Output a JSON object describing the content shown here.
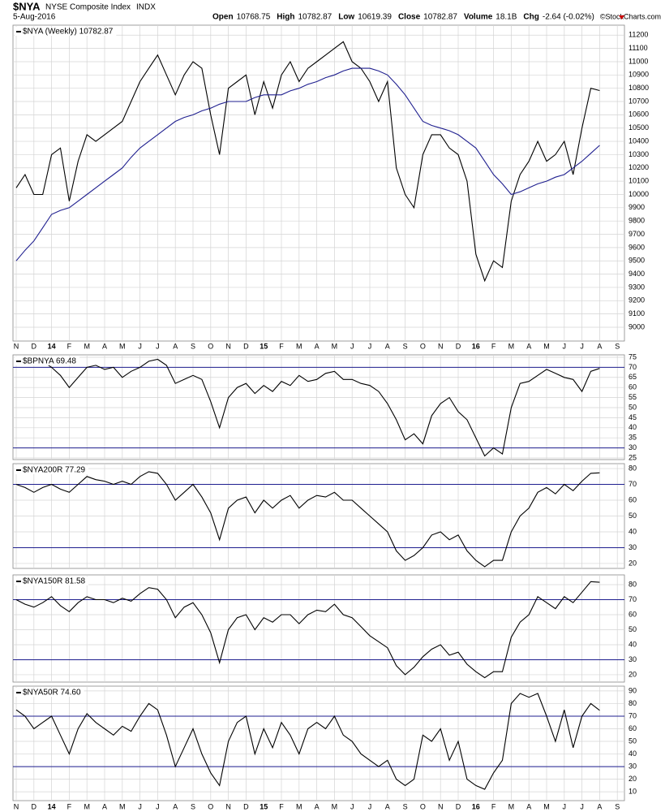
{
  "header": {
    "symbol": "$NYA",
    "name": "NYSE Composite Index",
    "exchange": "INDX",
    "date": "5-Aug-2016",
    "credit": "©StockCharts.com",
    "fields": [
      {
        "label": "Open",
        "value": 10768.75
      },
      {
        "label": "High",
        "value": 10782.87
      },
      {
        "label": "Low",
        "value": 10619.39
      },
      {
        "label": "Close",
        "value": 10782.87
      },
      {
        "label": "Volume",
        "value": "18.1B"
      },
      {
        "label": "Chg",
        "value": "-2.64 (-0.02%)"
      }
    ]
  },
  "chart_data": [
    {
      "type": "line",
      "title": "$NYA (Weekly) 10782.87",
      "grid": true,
      "categories": [
        "N",
        null,
        "D",
        null,
        "14",
        null,
        "F",
        null,
        "M",
        null,
        "A",
        null,
        "M",
        null,
        "J",
        null,
        "J",
        null,
        "A",
        null,
        "S",
        null,
        "O",
        null,
        "N",
        null,
        "D",
        null,
        "15",
        null,
        "F",
        null,
        "M",
        null,
        "A",
        null,
        "M",
        null,
        "J",
        null,
        "J",
        null,
        "A",
        null,
        "S",
        null,
        "O",
        null,
        "N",
        null,
        "D",
        null,
        "16",
        null,
        "F",
        null,
        "M",
        null,
        "A",
        null,
        "M",
        null,
        "J",
        null,
        "J",
        null,
        "A",
        null,
        "S",
        null
      ],
      "series": [
        {
          "color": "#000000",
          "values": [
            10050,
            10150,
            10000,
            10000,
            10300,
            10350,
            9950,
            10250,
            10450,
            10400,
            10450,
            10500,
            10550,
            10700,
            10850,
            10950,
            11050,
            10900,
            10750,
            10900,
            11000,
            10950,
            10600,
            10300,
            10800,
            10850,
            10900,
            10600,
            10850,
            10650,
            10900,
            11000,
            10850,
            10950,
            11000,
            11050,
            11100,
            11150,
            11000,
            10950,
            10850,
            10700,
            10850,
            10200,
            10000,
            9900,
            10300,
            10450,
            10450,
            10350,
            10300,
            10100,
            9550,
            9350,
            9500,
            9450,
            9950,
            10150,
            10250,
            10400,
            10250,
            10300,
            10400,
            10150,
            10500,
            10800,
            10782.87,
            null,
            null,
            null
          ]
        },
        {
          "color": "#1f1f8f",
          "values": [
            9500,
            9580,
            9650,
            9750,
            9850,
            9880,
            9900,
            9950,
            10000,
            10050,
            10100,
            10150,
            10200,
            10280,
            10350,
            10400,
            10450,
            10500,
            10550,
            10580,
            10600,
            10630,
            10650,
            10680,
            10700,
            10700,
            10700,
            10730,
            10750,
            10750,
            10750,
            10780,
            10800,
            10830,
            10850,
            10880,
            10900,
            10930,
            10950,
            10950,
            10950,
            10930,
            10900,
            10830,
            10750,
            10650,
            10550,
            10520,
            10500,
            10480,
            10450,
            10400,
            10350,
            10250,
            10150,
            10080,
            10000,
            10020,
            10050,
            10080,
            10100,
            10130,
            10150,
            10200,
            10250,
            10310,
            10370,
            null,
            null,
            null
          ]
        }
      ],
      "ylim": [
        8896,
        11275
      ],
      "yticks": [
        9000,
        9100,
        9200,
        9300,
        9400,
        9500,
        9600,
        9700,
        9800,
        9900,
        10000,
        10100,
        10200,
        10300,
        10400,
        10500,
        10600,
        10700,
        10800,
        10900,
        11000,
        11100,
        11200
      ]
    },
    {
      "type": "line",
      "title": "$BPNYA 69.48",
      "grid": true,
      "hlines": [
        70,
        30
      ],
      "hline_color": "#1f1f8f",
      "series": [
        {
          "color": "#000000",
          "values": [
            null,
            null,
            null,
            73,
            70,
            66,
            60,
            65,
            70,
            71,
            69,
            70,
            65,
            68,
            70,
            73,
            74,
            71,
            62,
            64,
            66,
            64,
            53,
            40,
            55,
            60,
            62,
            57,
            61,
            58,
            63,
            61,
            66,
            63,
            64,
            67,
            68,
            64,
            64,
            62,
            61,
            58,
            52,
            44,
            34,
            37,
            32,
            46,
            52,
            55,
            48,
            44,
            35,
            26,
            30,
            27,
            50,
            62,
            63,
            66,
            69,
            67,
            65,
            64,
            58,
            68,
            69.48,
            null,
            null,
            null
          ]
        }
      ],
      "ylim": [
        24.2,
        76.2
      ],
      "yticks": [
        25,
        30,
        35,
        40,
        45,
        50,
        55,
        60,
        65,
        70,
        75
      ]
    },
    {
      "type": "line",
      "title": "$NYA200R 77.29",
      "grid": true,
      "hlines": [
        70,
        30
      ],
      "hline_color": "#1f1f8f",
      "series": [
        {
          "color": "#000000",
          "values": [
            70,
            68,
            65,
            68,
            70,
            67,
            65,
            70,
            75,
            73,
            72,
            70,
            72,
            70,
            75,
            78,
            77,
            70,
            60,
            65,
            70,
            62,
            52,
            35,
            55,
            60,
            62,
            52,
            60,
            55,
            60,
            63,
            55,
            60,
            63,
            62,
            65,
            60,
            60,
            55,
            50,
            45,
            40,
            28,
            22,
            25,
            30,
            38,
            40,
            35,
            38,
            28,
            22,
            18,
            22,
            22,
            40,
            50,
            55,
            65,
            68,
            64,
            70,
            66,
            72,
            77,
            77.29,
            null,
            null,
            null
          ]
        }
      ],
      "ylim": [
        16.9,
        83.1
      ],
      "yticks": [
        20,
        30,
        40,
        50,
        60,
        70,
        80
      ]
    },
    {
      "type": "line",
      "title": "$NYA150R 81.58",
      "grid": true,
      "hlines": [
        70,
        30
      ],
      "hline_color": "#1f1f8f",
      "series": [
        {
          "color": "#000000",
          "values": [
            70,
            67,
            65,
            68,
            72,
            66,
            62,
            68,
            72,
            70,
            70,
            68,
            71,
            69,
            74,
            78,
            77,
            70,
            58,
            65,
            68,
            60,
            48,
            28,
            50,
            58,
            60,
            50,
            58,
            55,
            60,
            60,
            54,
            60,
            63,
            62,
            67,
            60,
            58,
            52,
            46,
            42,
            38,
            26,
            20,
            25,
            32,
            37,
            40,
            33,
            35,
            27,
            22,
            18,
            22,
            22,
            45,
            55,
            60,
            72,
            68,
            64,
            72,
            68,
            75,
            82,
            81.58,
            null,
            null,
            null
          ]
        }
      ],
      "ylim": [
        15.1,
        86.5
      ],
      "yticks": [
        20,
        30,
        40,
        50,
        60,
        70,
        80
      ]
    },
    {
      "type": "line",
      "title": "$NYA50R 74.60",
      "grid": true,
      "hlines": [
        70,
        30
      ],
      "hline_color": "#1f1f8f",
      "categories": [
        "N",
        null,
        "D",
        null,
        "14",
        null,
        "F",
        null,
        "M",
        null,
        "A",
        null,
        "M",
        null,
        "J",
        null,
        "J",
        null,
        "A",
        null,
        "S",
        null,
        "O",
        null,
        "N",
        null,
        "D",
        null,
        "15",
        null,
        "F",
        null,
        "M",
        null,
        "A",
        null,
        "M",
        null,
        "J",
        null,
        "J",
        null,
        "A",
        null,
        "S",
        null,
        "O",
        null,
        "N",
        null,
        "D",
        null,
        "16",
        null,
        "F",
        null,
        "M",
        null,
        "A",
        null,
        "M",
        null,
        "J",
        null,
        "J",
        null,
        "A",
        null,
        "S",
        null
      ],
      "series": [
        {
          "color": "#000000",
          "values": [
            75,
            70,
            60,
            65,
            70,
            55,
            40,
            60,
            72,
            65,
            60,
            55,
            62,
            58,
            70,
            80,
            75,
            55,
            30,
            45,
            60,
            40,
            25,
            15,
            50,
            65,
            70,
            40,
            60,
            45,
            65,
            55,
            40,
            60,
            65,
            60,
            70,
            55,
            50,
            40,
            35,
            30,
            35,
            20,
            15,
            20,
            55,
            50,
            60,
            35,
            50,
            20,
            15,
            12,
            25,
            35,
            80,
            88,
            85,
            88,
            70,
            50,
            75,
            45,
            70,
            80,
            74.6,
            null,
            null,
            null
          ]
        }
      ],
      "ylim": [
        3.0,
        93.8
      ],
      "yticks": [
        10,
        20,
        30,
        40,
        50,
        60,
        70,
        80,
        90
      ]
    }
  ]
}
